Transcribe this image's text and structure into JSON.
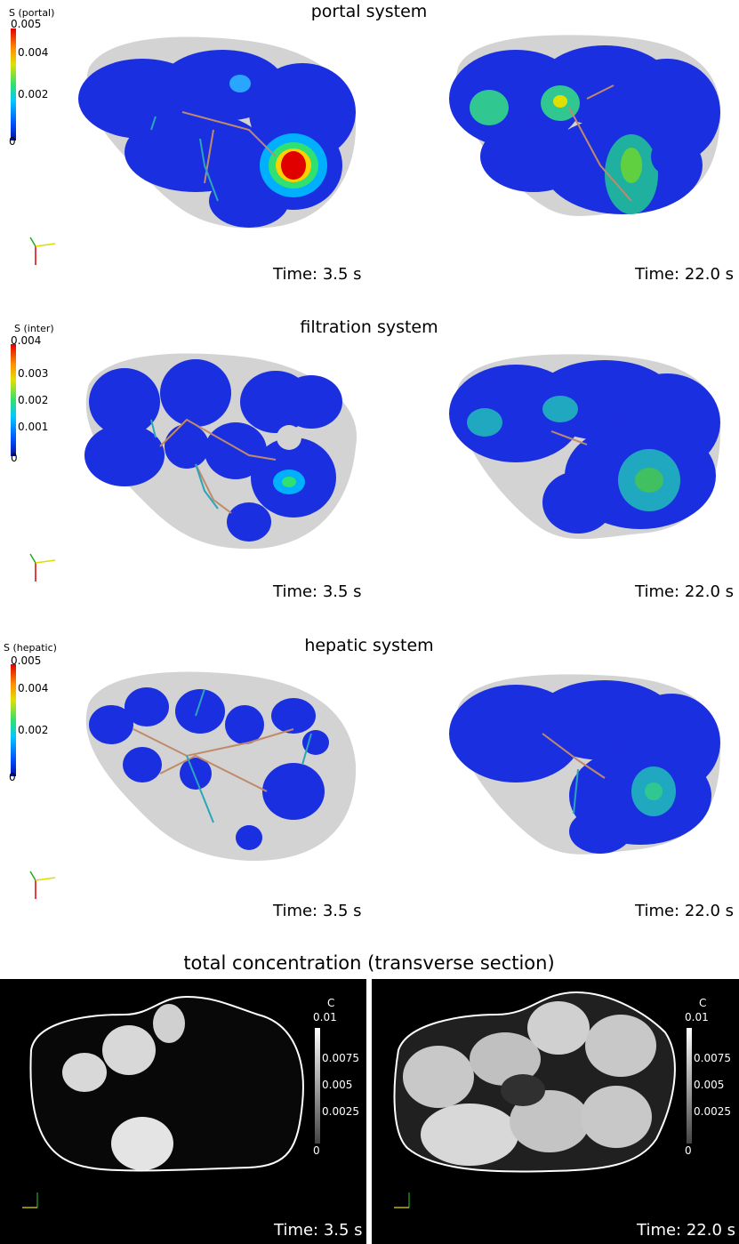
{
  "sections": [
    {
      "title": "portal system",
      "colorbar_title": "S (portal)",
      "ticks": [
        "0.005",
        "0.004",
        "0.002",
        "0"
      ],
      "times": [
        "Time: 3.5 s",
        "Time: 22.0 s"
      ]
    },
    {
      "title": "filtration system",
      "colorbar_title": "S (inter)",
      "ticks": [
        "0.004",
        "0.003",
        "0.002",
        "0.001",
        "0"
      ],
      "times": [
        "Time: 3.5 s",
        "Time: 22.0 s"
      ]
    },
    {
      "title": "hepatic system",
      "colorbar_title": "S (hepatic)",
      "ticks": [
        "0.005",
        "0.004",
        "0.002",
        "0"
      ],
      "times": [
        "Time: 3.5 s",
        "Time: 22.0 s"
      ]
    }
  ],
  "transverse": {
    "title": "total concentration (transverse section)",
    "colorbar_title": "C",
    "ticks": [
      "0.01",
      "0.0075",
      "0.005",
      "0.0025",
      "0"
    ],
    "times": [
      "Time: 3.5 s",
      "Time: 22.0 s"
    ]
  },
  "colors": {
    "liver_outline": "#d3d3d3",
    "lobule_blue": "#1a2fe0",
    "vessel_portal": "#c08a6a",
    "vessel_hepatic": "#2aa6b8",
    "background_dark": "#000000"
  }
}
